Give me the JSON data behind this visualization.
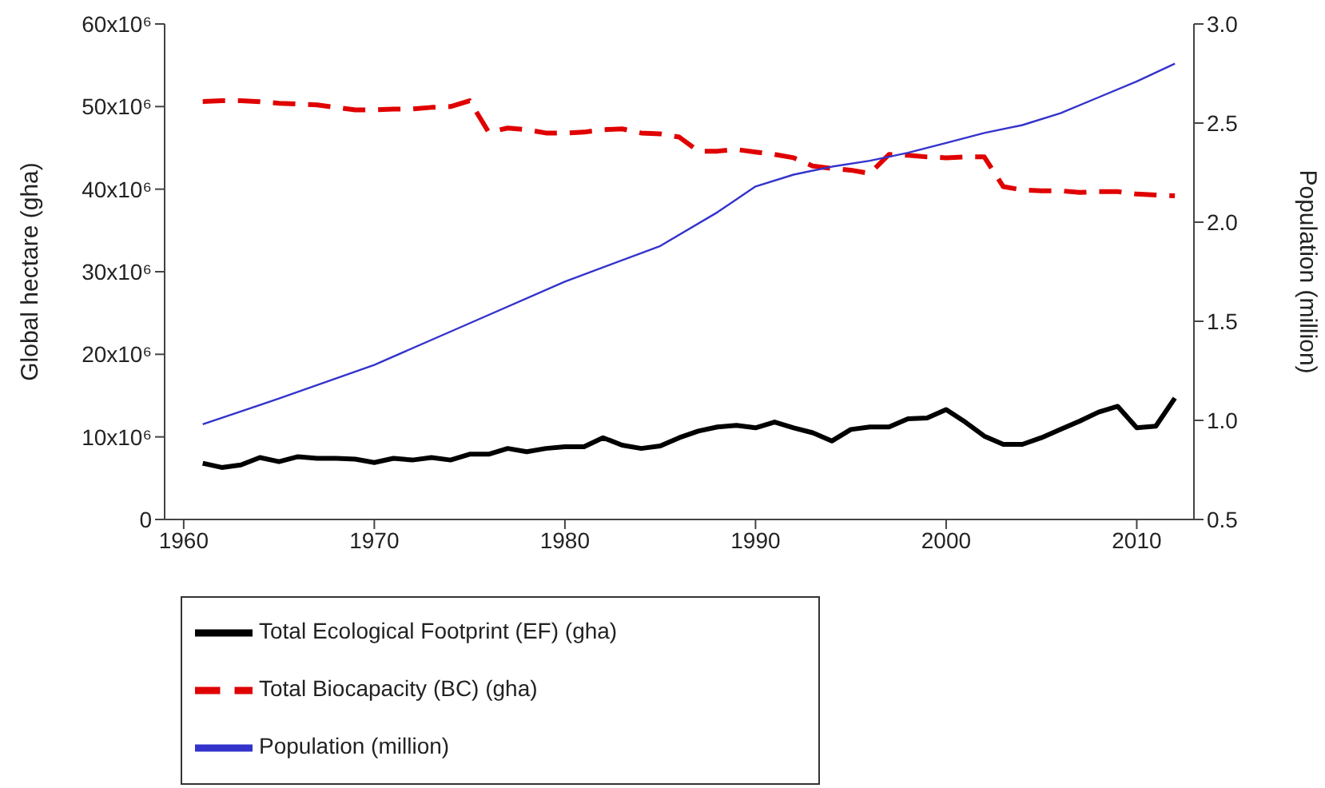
{
  "chart_data": {
    "type": "line",
    "xlabel": null,
    "ylabel": "Global hectare (gha)",
    "y2label": "Population (million)",
    "xlim": [
      1959,
      2013
    ],
    "xticks": [
      1960,
      1970,
      1980,
      1990,
      2000,
      2010
    ],
    "ylim": [
      0,
      60000000
    ],
    "yticks": [
      0,
      {
        "value": 10000000,
        "label": "10x10⁶"
      },
      {
        "value": 20000000,
        "label": "20x10⁶"
      },
      {
        "value": 30000000,
        "label": "30x10⁶"
      },
      {
        "value": 40000000,
        "label": "40x10⁶"
      },
      {
        "value": 50000000,
        "label": "50x10⁶"
      },
      {
        "value": 60000000,
        "label": "60x10⁶"
      }
    ],
    "y2lim": [
      0.5,
      3.0
    ],
    "y2ticks": [
      {
        "value": 0.5,
        "label": "0.5"
      },
      {
        "value": 1.0,
        "label": "1.0"
      },
      {
        "value": 1.5,
        "label": "1.5"
      },
      {
        "value": 2.0,
        "label": "2.0"
      },
      {
        "value": 2.5,
        "label": "2.5"
      },
      {
        "value": 3.0,
        "label": "3.0"
      }
    ],
    "grid": false,
    "legend": "bottom",
    "marker": "none",
    "x": [
      1961,
      1962,
      1963,
      1964,
      1965,
      1966,
      1967,
      1968,
      1969,
      1970,
      1971,
      1972,
      1973,
      1974,
      1975,
      1976,
      1977,
      1978,
      1979,
      1980,
      1981,
      1982,
      1983,
      1984,
      1985,
      1986,
      1987,
      1988,
      1989,
      1990,
      1991,
      1992,
      1993,
      1994,
      1995,
      1996,
      1997,
      1998,
      1999,
      2000,
      2001,
      2002,
      2003,
      2004,
      2005,
      2006,
      2007,
      2008,
      2009,
      2010,
      2011,
      2012
    ],
    "series": [
      {
        "name": "Total Ecological Footprint (EF) (gha)",
        "color": "#000000",
        "line_style": "solid",
        "values": [
          6800000,
          6300000,
          6600000,
          7500000,
          7000000,
          7600000,
          7400000,
          7400000,
          7300000,
          6900000,
          7400000,
          7200000,
          7500000,
          7200000,
          7900000,
          7900000,
          8600000,
          8200000,
          8600000,
          8800000,
          8800000,
          9900000,
          9000000,
          8600000,
          8900000,
          9900000,
          10700000,
          11200000,
          11400000,
          11100000,
          11800000,
          11100000,
          10500000,
          9500000,
          10900000,
          11200000,
          11200000,
          12200000,
          12300000,
          13300000,
          11800000,
          10100000,
          9100000,
          9100000,
          9900000,
          10900000,
          11900000,
          13000000,
          13700000,
          11100000,
          11300000,
          14700000
        ]
      },
      {
        "name": "Total Biocapacity (BC) (gha)",
        "color": "#e00000",
        "line_style": "dashed",
        "values": [
          50600000,
          50700000,
          50700000,
          50600000,
          50400000,
          50300000,
          50200000,
          49900000,
          49600000,
          49600000,
          49700000,
          49700000,
          49900000,
          50000000,
          50700000,
          46900000,
          47400000,
          47200000,
          46800000,
          46800000,
          46900000,
          47200000,
          47300000,
          46800000,
          46700000,
          46300000,
          44600000,
          44600000,
          44800000,
          44500000,
          44200000,
          43800000,
          42800000,
          42500000,
          42300000,
          41900000,
          44200000,
          44100000,
          43900000,
          43800000,
          43900000,
          43900000,
          40300000,
          39900000,
          39800000,
          39800000,
          39600000,
          39700000,
          39700000,
          39400000,
          39300000,
          39200000
        ]
      },
      {
        "name": "Population (million)",
        "color": "#3333cc",
        "line_style": "solid",
        "axis": "y2",
        "x": [
          1961,
          1965,
          1970,
          1975,
          1980,
          1985,
          1988,
          1990,
          1992,
          1994,
          1996,
          1998,
          2000,
          2002,
          2004,
          2006,
          2008,
          2010,
          2012
        ],
        "values": [
          0.98,
          1.11,
          1.28,
          1.49,
          1.7,
          1.88,
          2.05,
          2.18,
          2.24,
          2.28,
          2.31,
          2.35,
          2.4,
          2.45,
          2.49,
          2.55,
          2.63,
          2.71,
          2.8
        ]
      }
    ]
  }
}
